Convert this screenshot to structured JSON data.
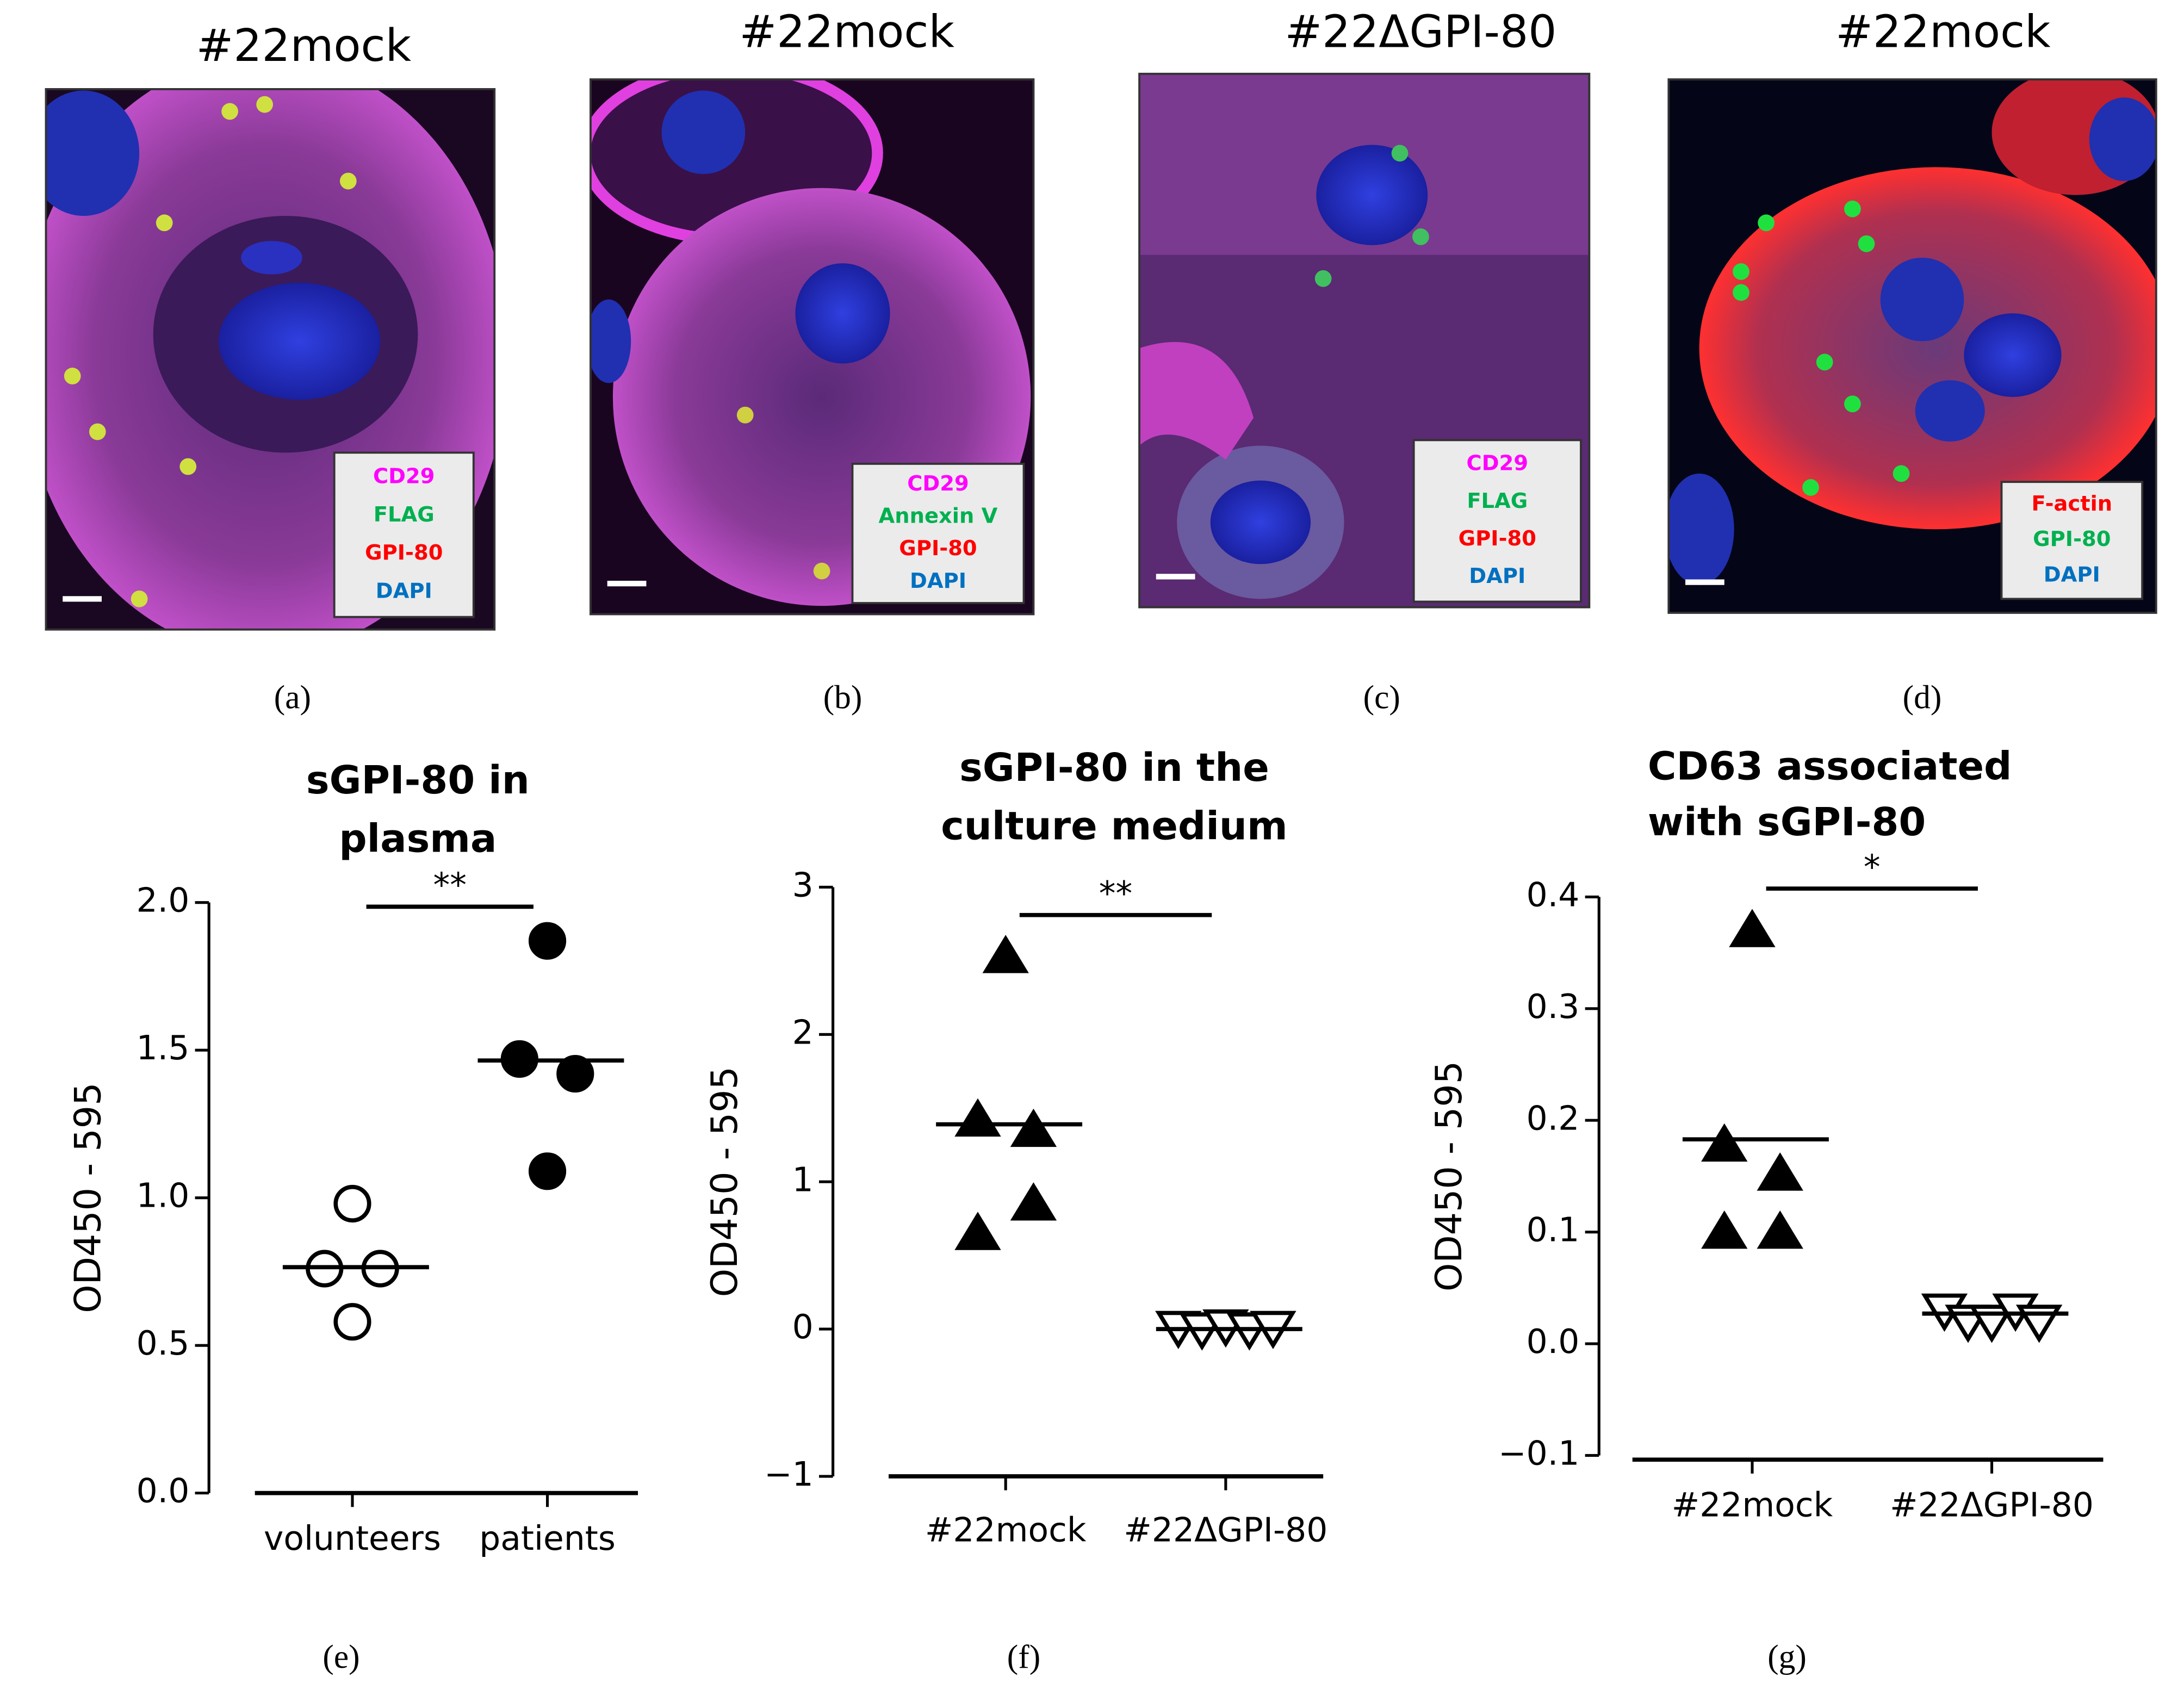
{
  "panels": [
    {
      "title": "#22mock",
      "label": "(a)",
      "legend": [
        {
          "text": "CD29",
          "color": "#ff00ff"
        },
        {
          "text": "FLAG",
          "color": "#00b050"
        },
        {
          "text": "GPI-80",
          "color": "#ff0000"
        },
        {
          "text": "DAPI",
          "color": "#0070c0"
        }
      ]
    },
    {
      "title": "#22mock",
      "label": "(b)",
      "legend": [
        {
          "text": "CD29",
          "color": "#ff00ff"
        },
        {
          "text": "Annexin V",
          "color": "#00b050"
        },
        {
          "text": "GPI-80",
          "color": "#ff0000"
        },
        {
          "text": "DAPI",
          "color": "#0070c0"
        }
      ]
    },
    {
      "title": "#22ΔGPI-80",
      "label": "(c)",
      "legend": [
        {
          "text": "CD29",
          "color": "#ff00ff"
        },
        {
          "text": "FLAG",
          "color": "#00b050"
        },
        {
          "text": "GPI-80",
          "color": "#ff0000"
        },
        {
          "text": "DAPI",
          "color": "#0070c0"
        }
      ]
    },
    {
      "title": "#22mock",
      "label": "(d)",
      "legend": [
        {
          "text": "F-actin",
          "color": "#ff0000"
        },
        {
          "text": "GPI-80",
          "color": "#00b050"
        },
        {
          "text": "DAPI",
          "color": "#0070c0"
        }
      ]
    }
  ],
  "chart_data": [
    {
      "type": "scatter",
      "label": "(e)",
      "title": [
        "sGPI-80 in",
        "plasma"
      ],
      "ylabel": "OD450 - 595",
      "categories": [
        "volunteers",
        "patients"
      ],
      "values": [
        [
          0.98,
          0.76,
          0.76,
          0.58
        ],
        [
          1.87,
          1.47,
          1.42,
          1.09
        ]
      ],
      "means": [
        0.765,
        1.465
      ],
      "markers": [
        "circle-open",
        "circle-filled"
      ],
      "color": "#000000",
      "ylim": [
        0,
        2.0
      ],
      "yticks": [
        {
          "value": 0,
          "label": "0.0"
        },
        0.5,
        {
          "value": 1,
          "label": "1.0"
        },
        1.5,
        {
          "value": 2,
          "label": "2.0"
        }
      ],
      "significance": "**"
    },
    {
      "type": "scatter",
      "label": "(f)",
      "title": [
        "sGPI-80 in the",
        "culture medium"
      ],
      "ylabel": "OD450 - 595",
      "categories": [
        "#22mock",
        "#22ΔGPI-80"
      ],
      "values": [
        [
          2.53,
          1.42,
          1.35,
          0.65,
          0.85
        ],
        [
          0.01,
          0.0,
          0.02,
          0.0,
          0.01
        ]
      ],
      "means": [
        1.39,
        0.0
      ],
      "markers": [
        "triangle-filled",
        "triangle-down-open"
      ],
      "color": "#000000",
      "ylim": [
        -1,
        3
      ],
      "yticks": [
        {
          "value": -1,
          "label": "−1"
        },
        0,
        1,
        2,
        3
      ],
      "significance": "**"
    },
    {
      "type": "scatter",
      "label": "(g)",
      "title": [
        "CD63 associated",
        "with sGPI-80"
      ],
      "ylabel": "OD450 - 595",
      "categories": [
        "#22mock",
        "#22ΔGPI-80"
      ],
      "values": [
        [
          0.37,
          0.178,
          0.152,
          0.1,
          0.1
        ],
        [
          0.03,
          0.02,
          0.02,
          0.03,
          0.02
        ]
      ],
      "means": [
        0.183,
        0.027
      ],
      "markers": [
        "triangle-filled",
        "triangle-down-open"
      ],
      "color": "#000000",
      "ylim": [
        -0.1,
        0.4
      ],
      "yticks": [
        {
          "value": -0.1,
          "label": "−0.1"
        },
        {
          "value": 0,
          "label": "0.0"
        },
        0.1,
        0.2,
        0.3,
        0.4
      ],
      "significance": "*"
    }
  ]
}
